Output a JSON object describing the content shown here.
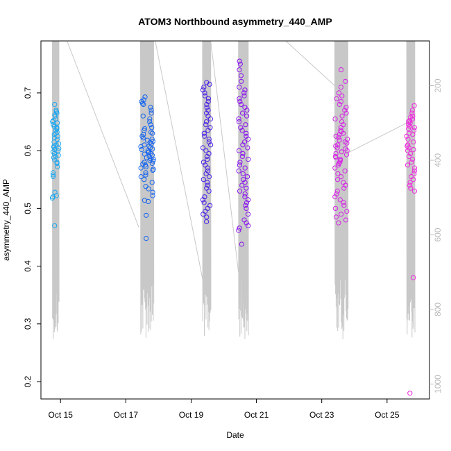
{
  "chart_data": {
    "type": "scatter",
    "title": "ATOM3 Northbound asymmetry_440_AMP",
    "xlabel": "Date",
    "ylabel": "asymmetry_440_AMP",
    "x_ticks": [
      "Oct 15",
      "Oct 17",
      "Oct 19",
      "Oct 21",
      "Oct 23",
      "Oct 25"
    ],
    "x_tick_days": [
      15,
      17,
      19,
      21,
      23,
      25
    ],
    "xlim_days": [
      14.4,
      26.3
    ],
    "ylim": [
      0.17,
      0.79
    ],
    "y_ticks": [
      0.2,
      0.3,
      0.4,
      0.5,
      0.6,
      0.7
    ],
    "y2_ticks": [
      200,
      400,
      600,
      800,
      1000
    ],
    "y2lim": [
      1040,
      80
    ],
    "grid": false,
    "legend": "none",
    "marker": "open-circle",
    "colors": {
      "clusters": [
        "#1ca7f0",
        "#1464f0",
        "#4a1ee8",
        "#8a10f0",
        "#d820e8",
        "#f028e0"
      ],
      "depth_line": "#c8c8c8",
      "axis": "#000000",
      "right_axis": "#bbbbbb"
    },
    "series": [
      {
        "day_range": [
          14.75,
          14.95
        ],
        "values": [
          0.47,
          0.518,
          0.522,
          0.528,
          0.52,
          0.555,
          0.558,
          0.562,
          0.572,
          0.578,
          0.58,
          0.584,
          0.588,
          0.59,
          0.592,
          0.595,
          0.598,
          0.6,
          0.602,
          0.604,
          0.606,
          0.608,
          0.61,
          0.612,
          0.615,
          0.62,
          0.622,
          0.625,
          0.628,
          0.63,
          0.632,
          0.635,
          0.638,
          0.64,
          0.642,
          0.645,
          0.648,
          0.65,
          0.652,
          0.655,
          0.66,
          0.662,
          0.665,
          0.668,
          0.67,
          0.68
        ]
      },
      {
        "day_range": [
          17.45,
          17.85
        ],
        "values": [
          0.448,
          0.488,
          0.512,
          0.514,
          0.522,
          0.528,
          0.534,
          0.538,
          0.545,
          0.55,
          0.555,
          0.558,
          0.562,
          0.566,
          0.568,
          0.57,
          0.572,
          0.575,
          0.577,
          0.578,
          0.58,
          0.582,
          0.583,
          0.585,
          0.586,
          0.588,
          0.59,
          0.592,
          0.594,
          0.595,
          0.597,
          0.598,
          0.6,
          0.602,
          0.603,
          0.605,
          0.607,
          0.608,
          0.61,
          0.612,
          0.614,
          0.616,
          0.618,
          0.62,
          0.622,
          0.625,
          0.628,
          0.63,
          0.632,
          0.635,
          0.638,
          0.64,
          0.645,
          0.65,
          0.655,
          0.66,
          0.665,
          0.67,
          0.675,
          0.68,
          0.682,
          0.685,
          0.688,
          0.693
        ]
      },
      {
        "day_range": [
          19.35,
          19.6
        ],
        "values": [
          0.477,
          0.485,
          0.49,
          0.495,
          0.5,
          0.505,
          0.51,
          0.515,
          0.52,
          0.53,
          0.535,
          0.54,
          0.545,
          0.55,
          0.555,
          0.56,
          0.565,
          0.57,
          0.575,
          0.58,
          0.585,
          0.59,
          0.595,
          0.6,
          0.605,
          0.61,
          0.615,
          0.62,
          0.625,
          0.63,
          0.635,
          0.64,
          0.645,
          0.65,
          0.655,
          0.66,
          0.665,
          0.67,
          0.675,
          0.68,
          0.685,
          0.69,
          0.695,
          0.7,
          0.705,
          0.71,
          0.715,
          0.718
        ]
      },
      {
        "day_range": [
          20.45,
          20.75
        ],
        "values": [
          0.438,
          0.462,
          0.466,
          0.47,
          0.475,
          0.48,
          0.49,
          0.5,
          0.505,
          0.51,
          0.515,
          0.52,
          0.525,
          0.53,
          0.535,
          0.54,
          0.545,
          0.55,
          0.555,
          0.56,
          0.565,
          0.57,
          0.575,
          0.58,
          0.585,
          0.59,
          0.595,
          0.6,
          0.605,
          0.61,
          0.615,
          0.62,
          0.625,
          0.63,
          0.635,
          0.64,
          0.645,
          0.65,
          0.655,
          0.66,
          0.665,
          0.67,
          0.675,
          0.68,
          0.685,
          0.69,
          0.695,
          0.7,
          0.705,
          0.71,
          0.72,
          0.73,
          0.74,
          0.75,
          0.755
        ]
      },
      {
        "day_range": [
          23.4,
          23.8
        ],
        "values": [
          0.475,
          0.48,
          0.485,
          0.49,
          0.495,
          0.5,
          0.505,
          0.51,
          0.515,
          0.52,
          0.525,
          0.53,
          0.535,
          0.54,
          0.545,
          0.55,
          0.555,
          0.56,
          0.565,
          0.57,
          0.575,
          0.578,
          0.58,
          0.583,
          0.585,
          0.588,
          0.59,
          0.593,
          0.595,
          0.598,
          0.6,
          0.603,
          0.605,
          0.608,
          0.61,
          0.613,
          0.615,
          0.618,
          0.62,
          0.623,
          0.625,
          0.628,
          0.63,
          0.633,
          0.635,
          0.64,
          0.645,
          0.65,
          0.655,
          0.66,
          0.665,
          0.67,
          0.675,
          0.68,
          0.685,
          0.69,
          0.695,
          0.7,
          0.71,
          0.72,
          0.74
        ]
      },
      {
        "day_range": [
          25.6,
          25.85
        ],
        "values": [
          0.18,
          0.38,
          0.53,
          0.535,
          0.54,
          0.545,
          0.55,
          0.555,
          0.56,
          0.565,
          0.57,
          0.575,
          0.58,
          0.585,
          0.59,
          0.595,
          0.6,
          0.602,
          0.605,
          0.608,
          0.61,
          0.615,
          0.62,
          0.625,
          0.628,
          0.63,
          0.635,
          0.638,
          0.64,
          0.642,
          0.645,
          0.648,
          0.65,
          0.652,
          0.655,
          0.658,
          0.66,
          0.665,
          0.67,
          0.678
        ]
      }
    ]
  }
}
